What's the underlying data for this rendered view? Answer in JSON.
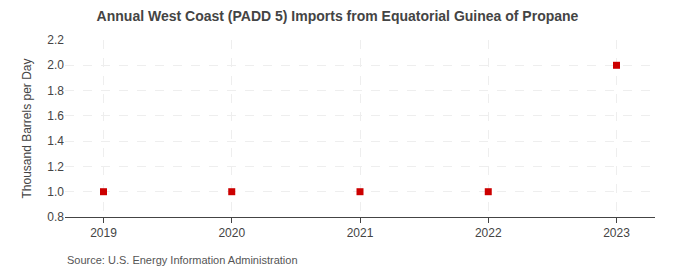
{
  "chart_data": {
    "type": "scatter",
    "title": "Annual West Coast (PADD 5) Imports from Equatorial Guinea of Propane",
    "ylabel": "Thousand Barrels per Day",
    "annotations": [
      "Source: U.S. Energy Information Administration"
    ],
    "x": [
      2019,
      2020,
      2021,
      2022,
      2023
    ],
    "values": [
      1.0,
      1.0,
      1.0,
      1.0,
      2.0
    ],
    "color": "#cc0000",
    "marker": "square",
    "xlim": [
      2018.7,
      2023.3
    ],
    "xticks": [
      2019,
      2020,
      2021,
      2022,
      2023
    ],
    "ylim": [
      0.8,
      2.2
    ],
    "yticks": [
      0.8,
      {
        "value": 1.0,
        "label": "1.0"
      },
      1.2,
      1.4,
      1.6,
      1.8,
      {
        "value": 2.0,
        "label": "2.0"
      },
      2.2
    ],
    "grid": true
  }
}
